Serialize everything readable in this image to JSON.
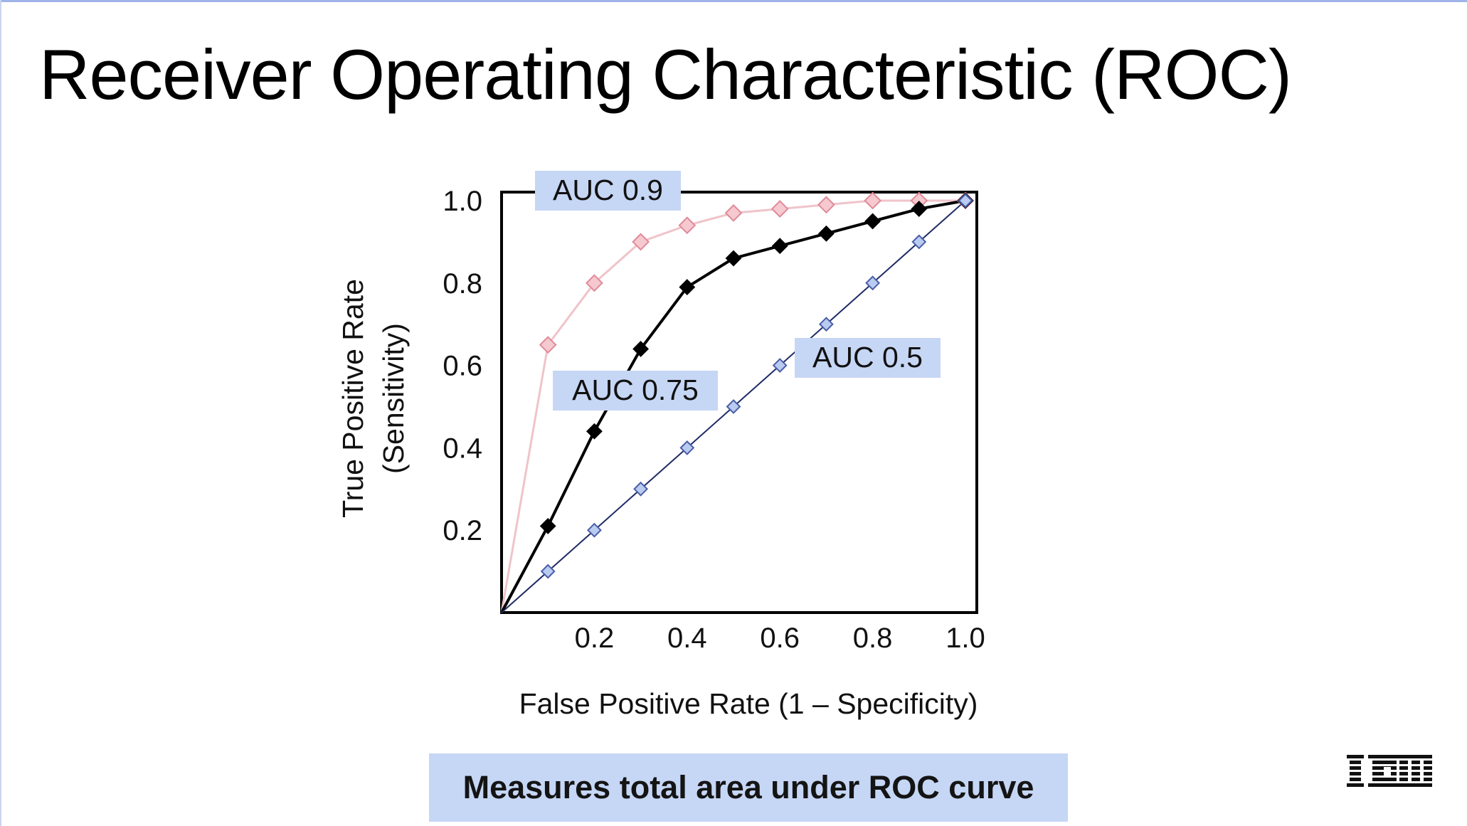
{
  "slide": {
    "title": "Receiver Operating Characteristic (ROC)",
    "caption": "Measures total area under ROC curve",
    "logo": "IBM"
  },
  "colors": {
    "auc09_line": "#efc4ca",
    "auc09_marker": "#f5c9cf",
    "auc075": "#000000",
    "auc05_line": "#1f2b66",
    "auc05_marker": "#b9cbf1",
    "label_box": "#c6d6f5",
    "caption_box": "#c6d6f5"
  },
  "chart_data": {
    "type": "line",
    "xlabel": "False Positive Rate (1 – Specificity)",
    "ylabel": "True Positive Rate",
    "ylabel_sub": "(Sensitivity)",
    "xlim": [
      0,
      1.0
    ],
    "ylim": [
      0,
      1.0
    ],
    "x_ticks": [
      "0.2",
      "0.4",
      "0.6",
      "0.8",
      "1.0"
    ],
    "y_ticks": [
      "0.2",
      "0.4",
      "0.6",
      "0.8",
      "1.0"
    ],
    "grid": false,
    "series": [
      {
        "name": "AUC 0.9",
        "x": [
          0,
          0.1,
          0.2,
          0.3,
          0.4,
          0.5,
          0.6,
          0.7,
          0.8,
          0.9,
          1.0
        ],
        "y": [
          0,
          0.65,
          0.8,
          0.9,
          0.94,
          0.97,
          0.98,
          0.99,
          1.0,
          1.0,
          1.0
        ]
      },
      {
        "name": "AUC 0.75",
        "x": [
          0,
          0.1,
          0.2,
          0.3,
          0.4,
          0.5,
          0.6,
          0.7,
          0.8,
          0.9,
          1.0
        ],
        "y": [
          0,
          0.21,
          0.44,
          0.64,
          0.79,
          0.86,
          0.89,
          0.92,
          0.95,
          0.98,
          1.0
        ]
      },
      {
        "name": "AUC 0.5",
        "x": [
          0,
          0.1,
          0.2,
          0.3,
          0.4,
          0.5,
          0.6,
          0.7,
          0.8,
          0.9,
          1.0
        ],
        "y": [
          0,
          0.1,
          0.2,
          0.3,
          0.4,
          0.5,
          0.6,
          0.7,
          0.8,
          0.9,
          1.0
        ]
      }
    ]
  }
}
